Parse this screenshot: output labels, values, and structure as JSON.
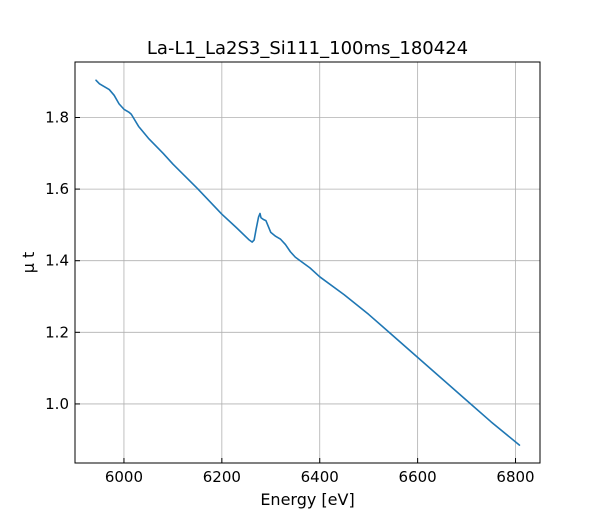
{
  "chart_data": {
    "type": "line",
    "title": "La-L1_La2S3_Si111_100ms_180424",
    "xlabel": "Energy [eV]",
    "ylabel": "μ t",
    "xlim": [
      5900,
      6850
    ],
    "ylim": [
      0.835,
      1.955
    ],
    "xticks": [
      6000,
      6200,
      6400,
      6600,
      6800
    ],
    "yticks": [
      1.0,
      1.2,
      1.4,
      1.6,
      1.8
    ],
    "xtick_labels": [
      "6000",
      "6200",
      "6400",
      "6600",
      "6800"
    ],
    "ytick_labels": [
      "1.0",
      "1.2",
      "1.4",
      "1.6",
      "1.8"
    ],
    "grid": true,
    "series": [
      {
        "color": "#1f77b4",
        "x": [
          5943,
          5950,
          5960,
          5970,
          5980,
          5990,
          6000,
          6010,
          6015,
          6030,
          6050,
          6080,
          6100,
          6150,
          6200,
          6230,
          6255,
          6262,
          6266,
          6270,
          6275,
          6278,
          6280,
          6285,
          6290,
          6300,
          6310,
          6320,
          6330,
          6340,
          6350,
          6360,
          6380,
          6400,
          6450,
          6500,
          6550,
          6600,
          6650,
          6700,
          6750,
          6808
        ],
        "y": [
          1.904,
          1.894,
          1.886,
          1.878,
          1.862,
          1.838,
          1.823,
          1.815,
          1.809,
          1.775,
          1.742,
          1.7,
          1.67,
          1.602,
          1.53,
          1.492,
          1.459,
          1.452,
          1.458,
          1.488,
          1.522,
          1.532,
          1.52,
          1.515,
          1.512,
          1.479,
          1.468,
          1.46,
          1.445,
          1.425,
          1.41,
          1.4,
          1.38,
          1.355,
          1.305,
          1.25,
          1.19,
          1.13,
          1.07,
          1.01,
          0.95,
          0.885
        ]
      }
    ]
  }
}
